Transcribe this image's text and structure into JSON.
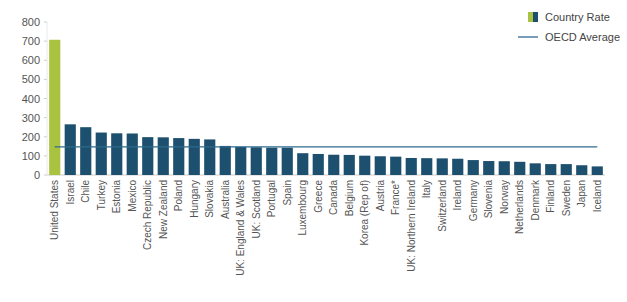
{
  "chart_data": {
    "type": "bar",
    "categories": [
      "United States",
      "Israel",
      "Chile",
      "Turkey",
      "Estonia",
      "Mexico",
      "Czech Republic",
      "New Zealand",
      "Poland",
      "Hungary",
      "Slovakia",
      "Australia",
      "UK: England & Wales",
      "UK: Scotland",
      "Portugal",
      "Spain",
      "Luxembourg",
      "Greece",
      "Canada",
      "Belgium",
      "Korea (Rep of)",
      "Austria",
      "France*",
      "UK: Northern Ireland",
      "Italy",
      "Switzerland",
      "Ireland",
      "Germany",
      "Slovenia",
      "Norway",
      "Netherlands",
      "Denmark",
      "Finland",
      "Sweden",
      "Japan",
      "Iceland"
    ],
    "series": [
      {
        "name": "Country Rate",
        "type": "bar",
        "colors": [
          "#a9c23f",
          "#1d4f6e",
          "#1d4f6e",
          "#1d4f6e",
          "#1d4f6e",
          "#1d4f6e",
          "#1d4f6e",
          "#1d4f6e",
          "#1d4f6e",
          "#1d4f6e",
          "#1d4f6e",
          "#1d4f6e",
          "#1d4f6e",
          "#1d4f6e",
          "#1d4f6e",
          "#1d4f6e",
          "#1d4f6e",
          "#1d4f6e",
          "#1d4f6e",
          "#1d4f6e",
          "#1d4f6e",
          "#1d4f6e",
          "#1d4f6e",
          "#1d4f6e",
          "#1d4f6e",
          "#1d4f6e",
          "#1d4f6e",
          "#1d4f6e",
          "#1d4f6e",
          "#1d4f6e",
          "#1d4f6e",
          "#1d4f6e",
          "#1d4f6e",
          "#1d4f6e",
          "#1d4f6e",
          "#1d4f6e"
        ],
        "values": [
          707,
          265,
          250,
          222,
          218,
          217,
          198,
          197,
          193,
          189,
          186,
          152,
          147,
          145,
          143,
          143,
          114,
          110,
          106,
          105,
          101,
          98,
          96,
          89,
          88,
          87,
          85,
          78,
          73,
          72,
          69,
          61,
          57,
          57,
          51,
          45
        ]
      },
      {
        "name": "OECD Average",
        "type": "line",
        "color": "#2e6a8c",
        "values": [
          147,
          147,
          147,
          147,
          147,
          147,
          147,
          147,
          147,
          147,
          147,
          147,
          147,
          147,
          147,
          147,
          147,
          147,
          147,
          147,
          147,
          147,
          147,
          147,
          147,
          147,
          147,
          147,
          147,
          147,
          147,
          147,
          147,
          147,
          147,
          147
        ]
      }
    ],
    "ylim": [
      0,
      800
    ],
    "yticks": [
      0,
      100,
      200,
      300,
      400,
      500,
      600,
      700,
      800
    ],
    "grid": false,
    "legend": "top-right"
  }
}
